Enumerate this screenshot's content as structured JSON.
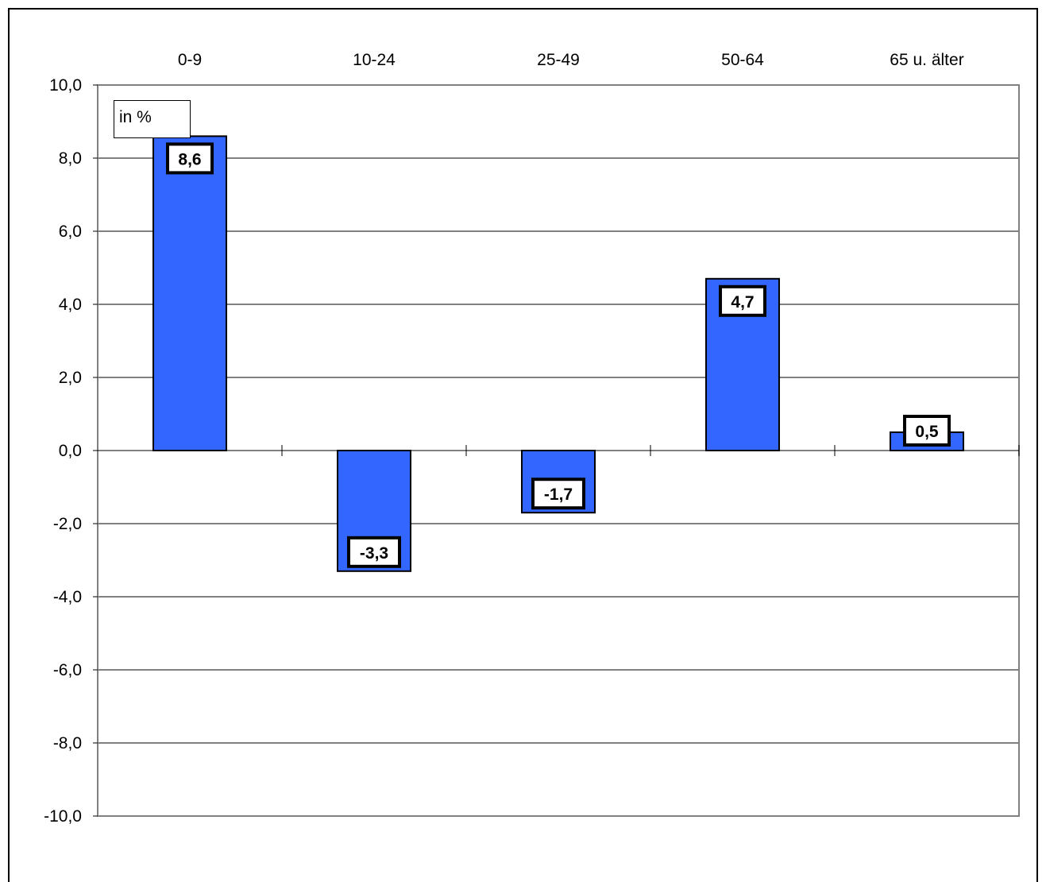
{
  "chart_data": {
    "type": "bar",
    "categories": [
      "0-9",
      "10-24",
      "25-49",
      "50-64",
      "65 u. älter"
    ],
    "values": [
      8.6,
      -3.3,
      -1.7,
      4.7,
      0.5
    ],
    "data_labels": [
      "8,6",
      "-3,3",
      "-1,7",
      "4,7",
      "0,5"
    ],
    "ylim": [
      -10,
      10
    ],
    "y_ticks": [
      10,
      8,
      6,
      4,
      2,
      0,
      -2,
      -4,
      -6,
      -8,
      -10
    ],
    "y_tick_labels": [
      "10,0",
      "8,0",
      "6,0",
      "4,0",
      "2,0",
      "0,0",
      "-2,0",
      "-4,0",
      "-6,0",
      "-8,0",
      "-10,0"
    ],
    "category_axis_position": "top",
    "grid": true,
    "unit_label": "in %",
    "legend": "none"
  },
  "colors": {
    "bar_fill": "#3366ff",
    "bar_stroke": "#000000",
    "grid": "#000000",
    "plot_border": "#808080",
    "label_box": "#ffffff"
  }
}
